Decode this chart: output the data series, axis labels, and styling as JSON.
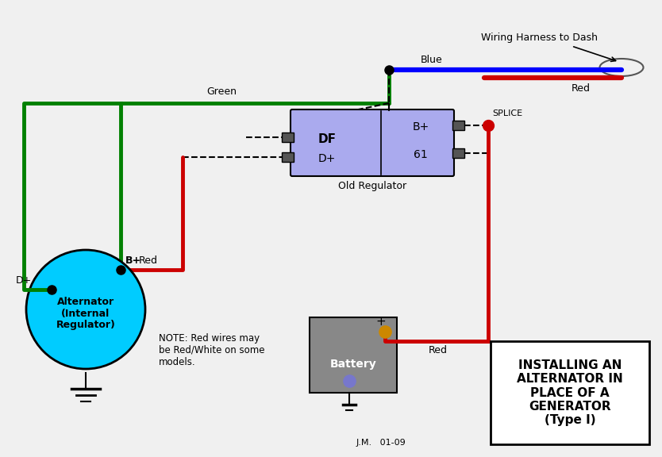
{
  "bg_color": "#f0f0f0",
  "title": "INSTALLING AN\nALTERNATOR IN\nPLACE OF A\nGENERATOR\n(Type I)",
  "note_text": "NOTE: Red wires may\nbe Red/White on some\nmodels.",
  "credit_text": "J.M.   01-09",
  "wiring_harness_label": "Wiring Harness to Dash",
  "green_label": "Green",
  "red_label1": "Red",
  "red_label2": "Red",
  "blue_label": "Blue",
  "splice_label": "SPLICE",
  "bplus_label": "B+",
  "dplus_label": "D+",
  "old_reg_label": "Old Regulator",
  "alternator_label": "Alternator\n(Internal\nRegulator)",
  "battery_label": "Battery",
  "colors": {
    "green": "#008000",
    "red": "#cc0000",
    "blue": "#4444ff",
    "alternator_fill": "#00ccff",
    "regulator_fill": "#aaaaee",
    "battery_fill": "#888888",
    "black": "#000000",
    "dark_gray": "#555555",
    "splice_dot": "#cc0000",
    "junction_dot": "#000000",
    "battery_pos": "#cc8800",
    "battery_neg": "#7777cc"
  }
}
